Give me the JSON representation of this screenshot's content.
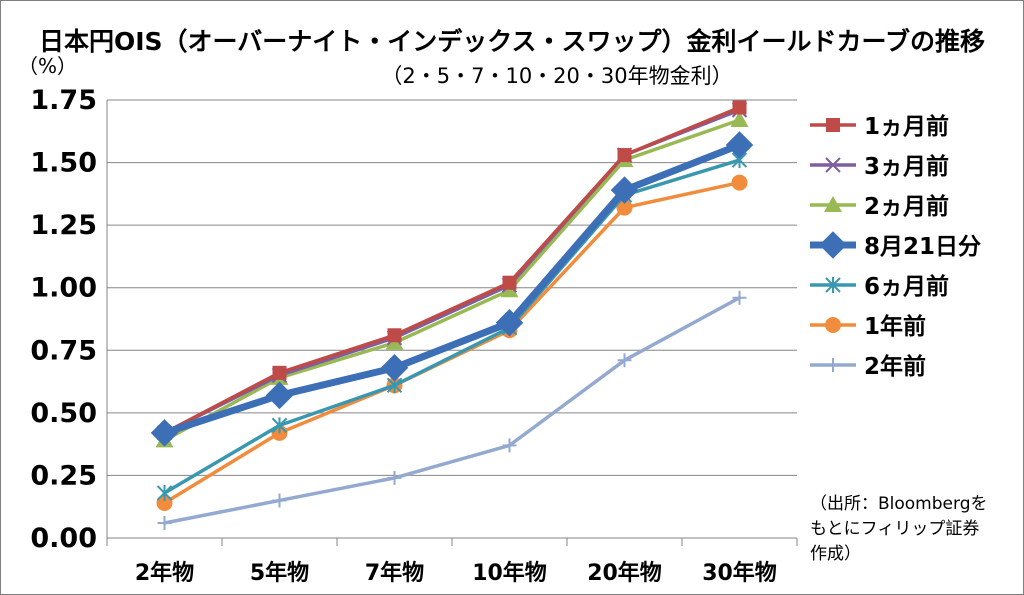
{
  "chart_data": {
    "type": "line",
    "title": "日本円OIS（オーバーナイト・インデックス・スワップ）金利イールドカーブの推移",
    "subtitle": "（2・5・7・10・20・30年物金利）",
    "ylabel": "（%）",
    "source": "（出所：Bloombergを\nもとにフィリップ証券\n作成）",
    "categories": [
      "2年物",
      "5年物",
      "7年物",
      "10年物",
      "20年物",
      "30年物"
    ],
    "ylim": [
      0,
      1.75
    ],
    "yticks": [
      "0.00",
      "0.25",
      "0.50",
      "0.75",
      "1.00",
      "1.25",
      "1.50",
      "1.75"
    ],
    "grid": true,
    "legend_position": "right",
    "series": [
      {
        "name": "1ヵ月前",
        "color": "#be4b48",
        "marker": "square",
        "values": [
          0.42,
          0.66,
          0.81,
          1.02,
          1.53,
          1.72
        ]
      },
      {
        "name": "3ヵ月前",
        "color": "#7d5fa0",
        "marker": "x",
        "values": [
          0.42,
          0.65,
          0.8,
          1.01,
          1.53,
          1.71
        ]
      },
      {
        "name": "2ヵ月前",
        "color": "#98b954",
        "marker": "triangle",
        "values": [
          0.39,
          0.64,
          0.78,
          0.99,
          1.51,
          1.67
        ]
      },
      {
        "name": "8月21日分",
        "color": "#3c6fb5",
        "marker": "diamond",
        "values": [
          0.42,
          0.57,
          0.68,
          0.86,
          1.39,
          1.57
        ]
      },
      {
        "name": "6ヵ月前",
        "color": "#3a97b0",
        "marker": "asterisk",
        "values": [
          0.18,
          0.45,
          0.61,
          0.84,
          1.37,
          1.51
        ]
      },
      {
        "name": "1年前",
        "color": "#f08c3c",
        "marker": "circle",
        "values": [
          0.14,
          0.42,
          0.61,
          0.83,
          1.32,
          1.42
        ]
      },
      {
        "name": "2年前",
        "color": "#94a9d0",
        "marker": "plus",
        "values": [
          0.06,
          0.15,
          0.24,
          0.37,
          0.71,
          0.96
        ]
      }
    ]
  }
}
